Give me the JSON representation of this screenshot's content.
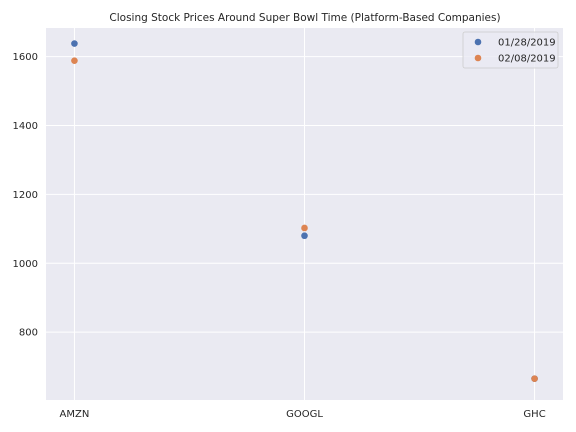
{
  "chart_data": {
    "type": "scatter",
    "title": "Closing Stock Prices Around Super Bowl Time (Platform-Based Companies)",
    "xlabel": "",
    "ylabel": "",
    "categories": [
      "AMZN",
      "GOOGL",
      "GHC"
    ],
    "y_ticks": [
      800,
      1000,
      1200,
      1400,
      1600
    ],
    "ylim": [
      603,
      1683
    ],
    "grid": true,
    "legend_position": "top-right",
    "series": [
      {
        "name": "01/28/2019",
        "color": "#4c72b0",
        "values": [
          1637.9,
          1079.9,
          665.0
        ]
      },
      {
        "name": "02/08/2019",
        "color": "#dd8452",
        "values": [
          1588.2,
          1102.4,
          664.8
        ]
      }
    ]
  },
  "colors": {
    "plot_background": "#eaeaf2",
    "grid": "#ffffff",
    "text": "#262626"
  }
}
